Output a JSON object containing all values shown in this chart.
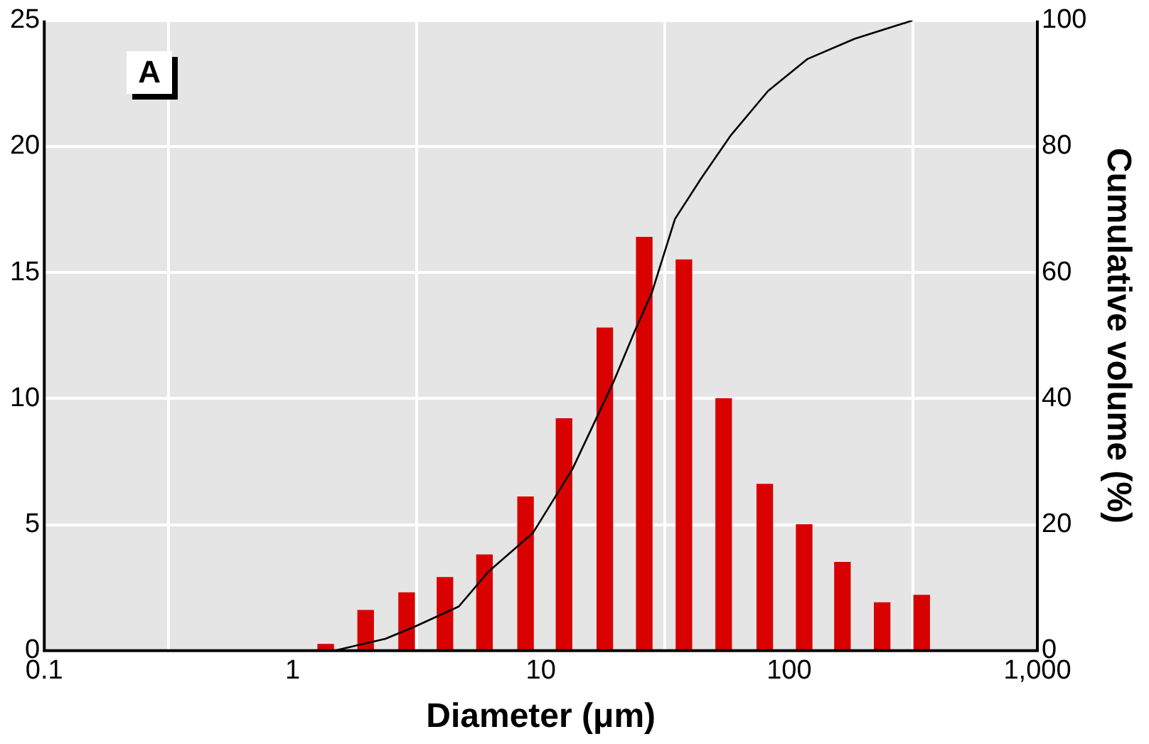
{
  "chart_data": {
    "type": "bar",
    "xlabel": "Diameter (μm)",
    "y2label": "Cumulative volume (%)",
    "annotations": [
      "A"
    ],
    "log": "x",
    "grid": true,
    "xlim": [
      0.1,
      1000
    ],
    "xticks": [
      0.1,
      1,
      10,
      100,
      {
        "value": 1000,
        "label": "1,000"
      }
    ],
    "ylim": [
      0,
      25
    ],
    "yticks": [
      0,
      5,
      10,
      15,
      20,
      25
    ],
    "y2lim": [
      0,
      100
    ],
    "y2ticks": [
      0,
      20,
      40,
      60,
      80,
      100
    ],
    "series": [
      {
        "color": "#d90000",
        "x": [
          1.36,
          1.97,
          2.88,
          4.11,
          5.93,
          8.68,
          12.4,
          18.1,
          26.1,
          37.7,
          54.5,
          79.8,
          115,
          164,
          237,
          342
        ],
        "values": [
          0.25,
          1.6,
          2.3,
          2.9,
          3.8,
          6.1,
          9.2,
          12.8,
          16.4,
          15.5,
          10.0,
          6.6,
          5.0,
          3.5,
          1.9,
          2.2
        ]
      },
      {
        "type": "line",
        "axis": "y2",
        "color": "#000000",
        "marker": "none",
        "x": [
          1.48,
          1.55,
          2.37,
          3.14,
          4.67,
          6.14,
          9.3,
          13.4,
          19.7,
          23.9,
          28.0,
          34.7,
          44.0,
          58.3,
          82.2,
          118.7,
          183.7,
          314
        ],
        "values": [
          0,
          0.2,
          1.9,
          3.9,
          7,
          12.5,
          18.7,
          28.8,
          42.8,
          50.7,
          56.8,
          68.5,
          74.8,
          81.8,
          88.8,
          93.9,
          97.1,
          100
        ]
      }
    ]
  }
}
